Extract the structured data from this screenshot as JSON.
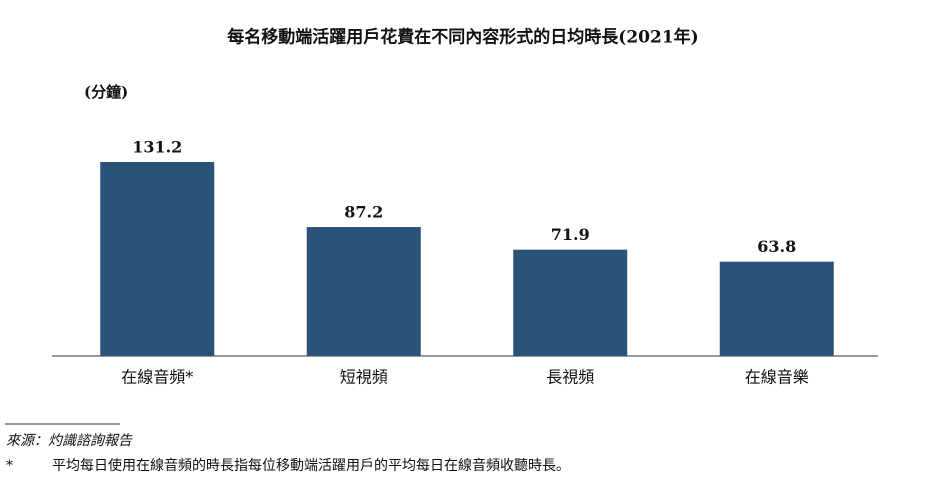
{
  "chart_data": {
    "type": "bar",
    "title": "每名移動端活躍用戶花費在不同內容形式的日均時長(2021年)",
    "unit_label": "(分鐘)",
    "categories": [
      "在線音頻*",
      "短視頻",
      "長視頻",
      "在線音樂"
    ],
    "values": [
      131.2,
      87.2,
      71.9,
      63.8
    ],
    "color": "#2b5279",
    "source": "來源：灼識諮詢報告",
    "footnote": {
      "marker": "*",
      "text": "平均每日使用在線音頻的時長指每位移動端活躍用戶的平均每日在線音頻收聽時長。"
    }
  }
}
